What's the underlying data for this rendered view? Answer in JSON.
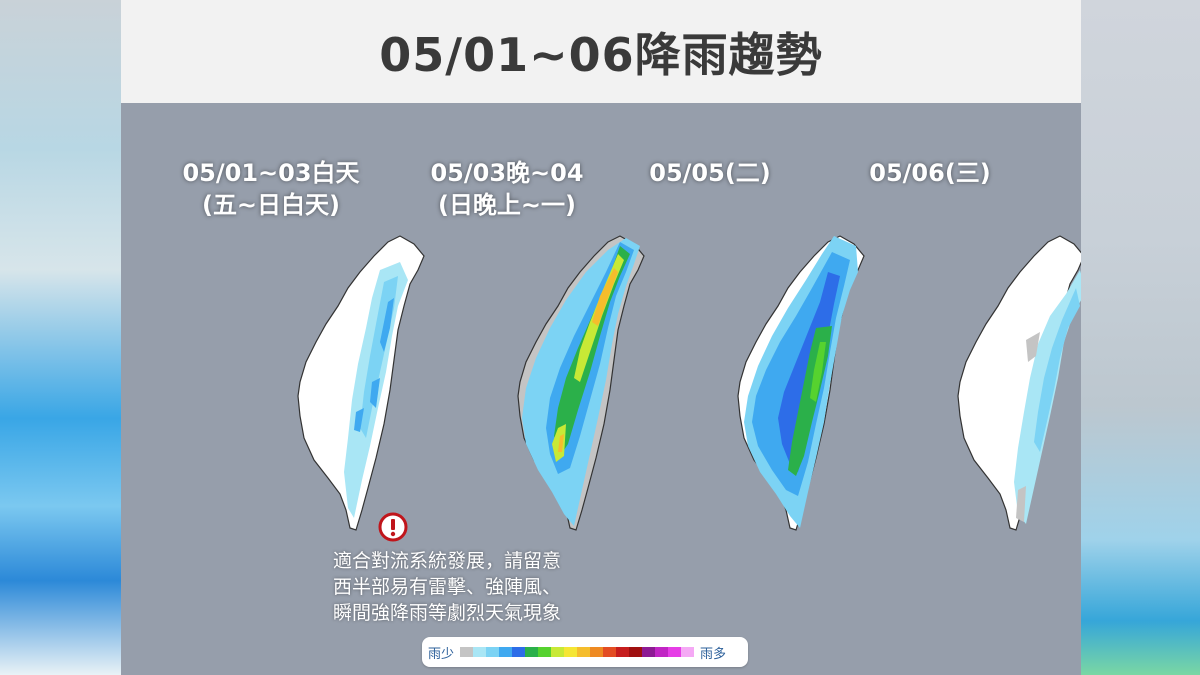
{
  "title": "05/01~06降雨趨勢",
  "panels": [
    {
      "label_line1": "05/01~03白天",
      "label_line2": "(五~日白天)"
    },
    {
      "label_line1": "05/03晚~04",
      "label_line2": "(日晚上~一)"
    },
    {
      "label_line1": "05/05(二)",
      "label_line2": ""
    },
    {
      "label_line1": "05/06(三)",
      "label_line2": ""
    }
  ],
  "warning": {
    "icon": "exclamation-circle-icon",
    "lines": [
      "適合對流系統發展，請留意",
      "西半部易有雷擊、強陣風、",
      "瞬間強降雨等劇烈天氣現象"
    ]
  },
  "legend": {
    "low_label": "雨少",
    "high_label": "雨多",
    "colors": [
      "#c4c4c4",
      "#a9e6f5",
      "#7cd3f4",
      "#3fa9f0",
      "#2d6de8",
      "#2bb04a",
      "#56d22f",
      "#c8e936",
      "#f5e634",
      "#f5bd2c",
      "#ee8a22",
      "#e34d23",
      "#c61e1e",
      "#a01010",
      "#8e1a94",
      "#c125c4",
      "#e63de6",
      "#f5a9f5"
    ]
  }
}
